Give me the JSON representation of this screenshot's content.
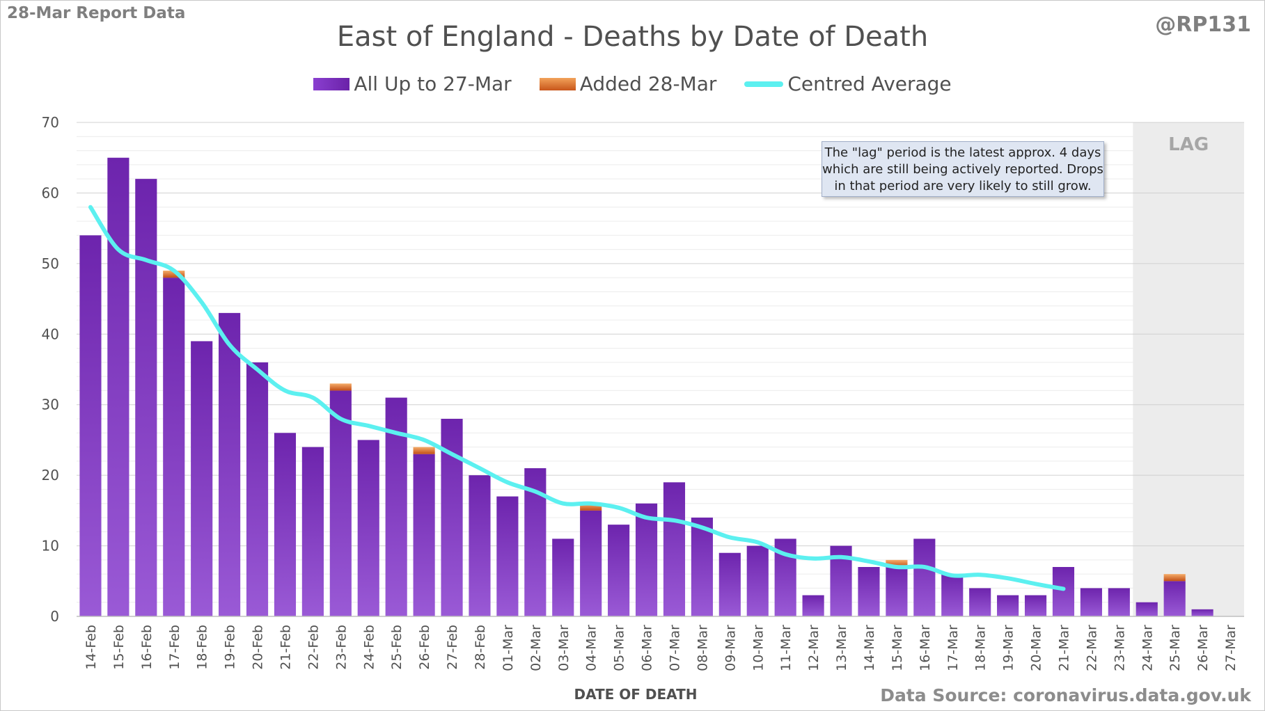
{
  "header": {
    "report_label": "28-Mar Report Data",
    "author": "@RP131",
    "source": "Data Source: coronavirus.data.gov.uk"
  },
  "annotation": {
    "lag_label": "LAG",
    "note": "The \"lag\" period is the latest approx. 4 days which are still being actively reported. Drops in that period are very likely to still grow."
  },
  "chart_data": {
    "type": "bar",
    "title": "East of England - Deaths by Date of Death",
    "xlabel": "DATE OF DEATH",
    "ylabel": "",
    "ylim": [
      0,
      70
    ],
    "yticks": [
      0,
      10,
      20,
      30,
      40,
      50,
      60,
      70
    ],
    "grid": true,
    "legend_position": "top",
    "stacked": true,
    "lag_categories": [
      "24-Mar",
      "25-Mar",
      "26-Mar",
      "27-Mar"
    ],
    "categories": [
      "14-Feb",
      "15-Feb",
      "16-Feb",
      "17-Feb",
      "18-Feb",
      "19-Feb",
      "20-Feb",
      "21-Feb",
      "22-Feb",
      "23-Feb",
      "24-Feb",
      "25-Feb",
      "26-Feb",
      "27-Feb",
      "28-Feb",
      "01-Mar",
      "02-Mar",
      "03-Mar",
      "04-Mar",
      "05-Mar",
      "06-Mar",
      "07-Mar",
      "08-Mar",
      "09-Mar",
      "10-Mar",
      "11-Mar",
      "12-Mar",
      "13-Mar",
      "14-Mar",
      "15-Mar",
      "16-Mar",
      "17-Mar",
      "18-Mar",
      "19-Mar",
      "20-Mar",
      "21-Mar",
      "22-Mar",
      "23-Mar",
      "24-Mar",
      "25-Mar",
      "26-Mar",
      "27-Mar"
    ],
    "series": [
      {
        "name": "All Up to 27-Mar",
        "kind": "bar",
        "color": "#7b2fc0",
        "values": [
          54,
          65,
          62,
          48,
          39,
          43,
          36,
          26,
          24,
          32,
          25,
          31,
          23,
          28,
          20,
          17,
          21,
          11,
          15,
          13,
          16,
          19,
          14,
          9,
          10,
          11,
          3,
          10,
          7,
          7,
          11,
          6,
          4,
          3,
          3,
          7,
          4,
          4,
          2,
          5,
          1,
          0
        ]
      },
      {
        "name": "Added 28-Mar",
        "kind": "bar",
        "color": "#e07a30",
        "values": [
          0,
          0,
          0,
          1,
          0,
          0,
          0,
          0,
          0,
          1,
          0,
          0,
          1,
          0,
          0,
          0,
          0,
          0,
          1,
          0,
          0,
          0,
          0,
          0,
          0,
          0,
          0,
          0,
          0,
          1,
          0,
          0,
          0,
          0,
          0,
          0,
          0,
          0,
          0,
          1,
          0,
          0
        ]
      },
      {
        "name": "Centred Average",
        "kind": "line",
        "color": "#5cf0f0",
        "values": [
          58,
          52,
          50.5,
          49,
          44.5,
          38.5,
          35,
          32,
          31,
          28,
          27,
          26,
          25,
          23,
          21,
          19,
          17.7,
          16,
          16,
          15.4,
          14,
          13.6,
          12.6,
          11.2,
          10.5,
          8.8,
          8.2,
          8.4,
          7.8,
          7.0,
          7.0,
          5.8,
          5.9,
          5.4,
          4.6,
          3.9,
          null,
          null,
          null,
          null,
          null,
          null
        ]
      }
    ]
  }
}
